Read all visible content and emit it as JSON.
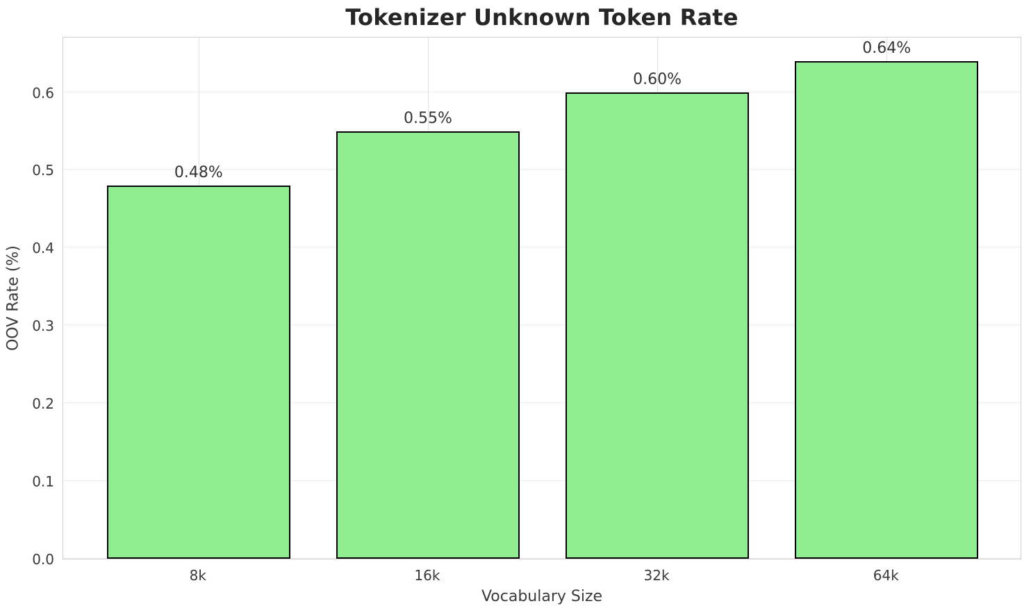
{
  "chart_data": {
    "type": "bar",
    "title": "Tokenizer Unknown Token Rate",
    "xlabel": "Vocabulary Size",
    "ylabel": "OOV Rate (%)",
    "categories": [
      "8k",
      "16k",
      "32k",
      "64k"
    ],
    "values": [
      0.48,
      0.55,
      0.6,
      0.64
    ],
    "bar_labels": [
      "0.48%",
      "0.55%",
      "0.60%",
      "0.64%"
    ],
    "ylim": [
      0,
      0.672
    ],
    "yticks": [
      0.0,
      0.1,
      0.2,
      0.3,
      0.4,
      0.5,
      0.6
    ],
    "ytick_labels": [
      "0.0",
      "0.1",
      "0.2",
      "0.3",
      "0.4",
      "0.5",
      "0.6"
    ],
    "grid": true,
    "legend_position": "none",
    "colors": {
      "bar_fill": "#90EE90",
      "bar_edge": "#000000",
      "grid_horizontal": "#ececec",
      "grid_vertical": "#e0e0e0",
      "spine": "#d0d0d0",
      "tick_text": "#3a3a3a",
      "title_text": "#262626",
      "background": "#ffffff"
    }
  }
}
